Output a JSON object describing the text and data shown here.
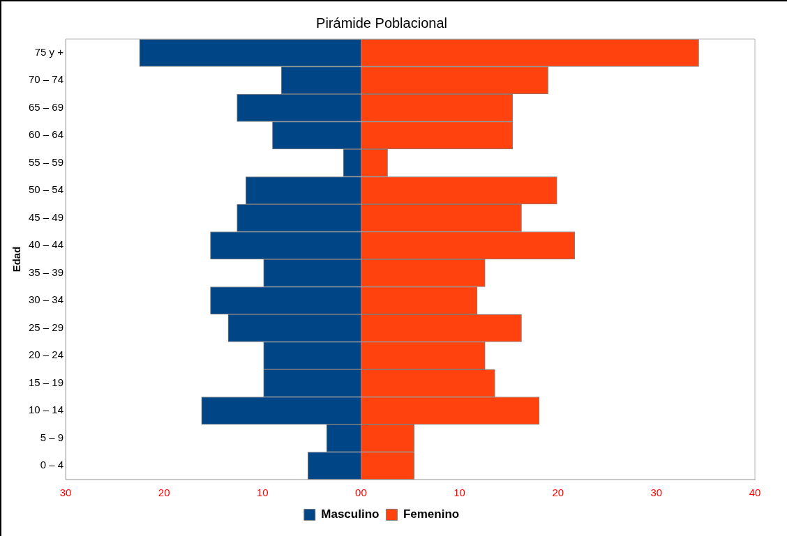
{
  "chart_data": {
    "type": "bar",
    "orientation": "horizontal",
    "stacked": true,
    "title": "Pirámide Poblacional",
    "ylabel": "Edad",
    "categories": [
      "75 y +",
      "70 – 74",
      "65 – 69",
      "60 – 64",
      "55 – 59",
      "50 – 54",
      "45 – 49",
      "40 – 44",
      "35 – 39",
      "30 – 34",
      "25 – 29",
      "20 – 24",
      "15 – 19",
      "10 – 14",
      "5 – 9",
      "0 – 4"
    ],
    "series": [
      {
        "name": "Masculino",
        "color": "#004586",
        "values": [
          -22.5,
          -8.1,
          -12.6,
          -9.0,
          -1.8,
          -11.7,
          -12.6,
          -15.3,
          -9.9,
          -15.3,
          -13.5,
          -9.9,
          -9.9,
          -16.2,
          -3.5,
          -5.4
        ]
      },
      {
        "name": "Femenino",
        "color": "#ff420e",
        "values": [
          34.3,
          19.0,
          15.4,
          15.4,
          2.7,
          19.9,
          16.3,
          21.7,
          12.6,
          11.8,
          16.3,
          12.6,
          13.6,
          18.1,
          5.4,
          5.4
        ]
      }
    ],
    "xlim": [
      -30,
      40
    ],
    "xticks": [
      {
        "value": -30,
        "label": "30"
      },
      {
        "value": -20,
        "label": "20"
      },
      {
        "value": -10,
        "label": "10"
      },
      {
        "value": 0,
        "label": "00"
      },
      10,
      20,
      30,
      40
    ],
    "grid": false,
    "legend": "bottom"
  }
}
